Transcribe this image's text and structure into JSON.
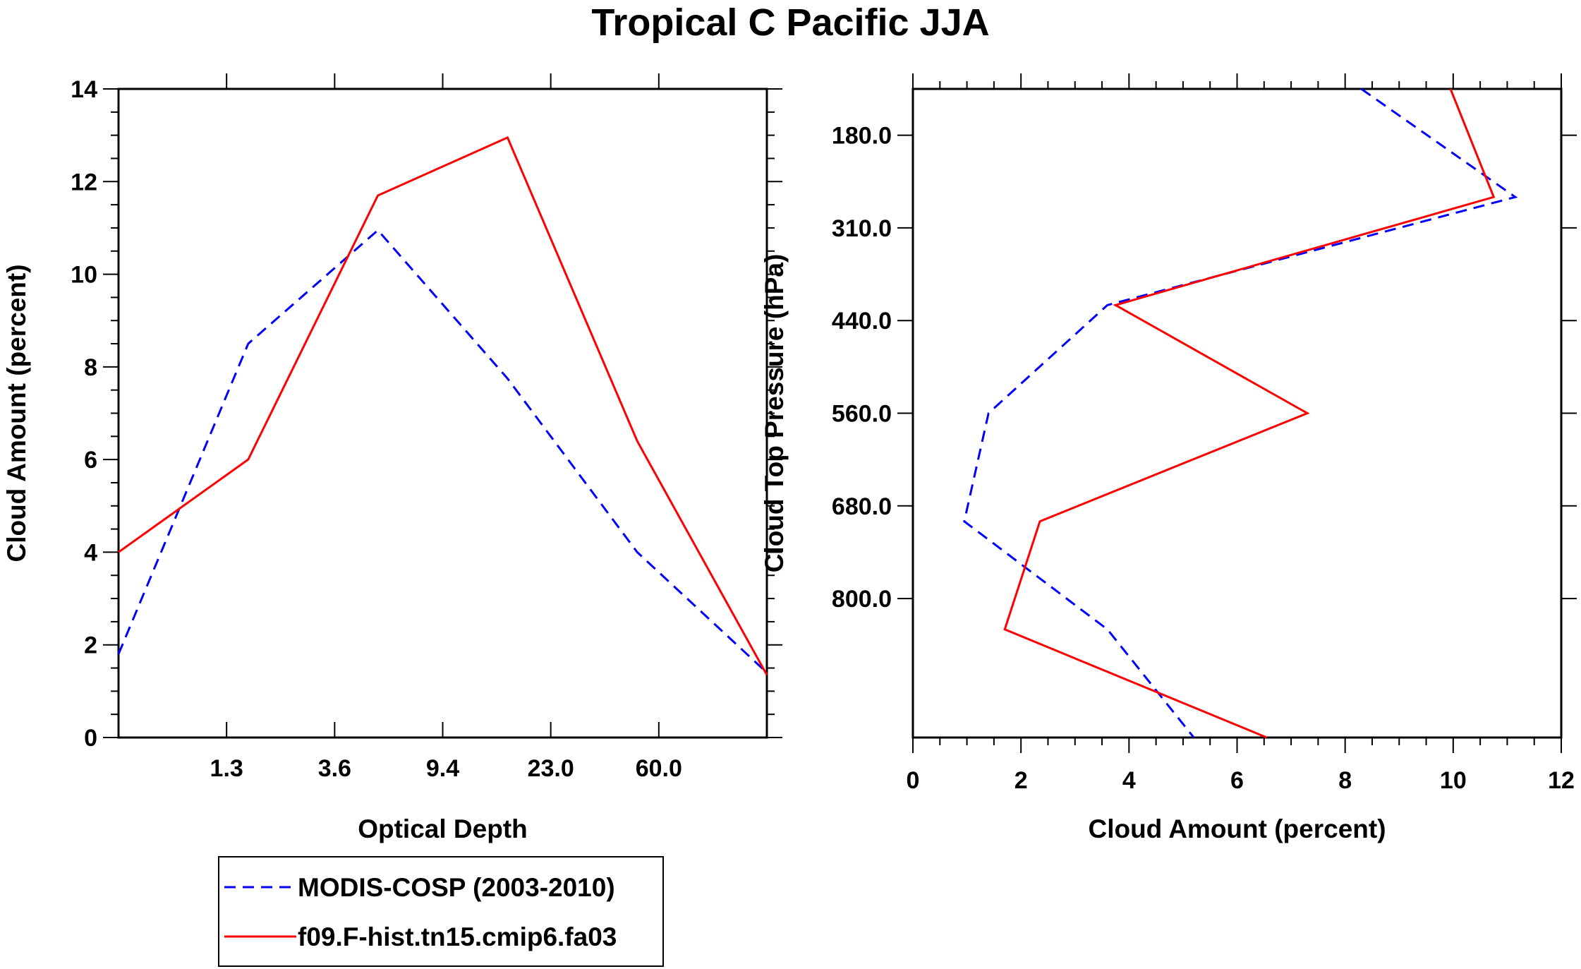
{
  "title": "Tropical C Pacific JJA",
  "colors": {
    "observed": "#0000ff",
    "model": "#ff0000",
    "axis": "#000000"
  },
  "chart_data": [
    {
      "type": "line",
      "xlabel": "Optical Depth",
      "ylabel": "Cloud Amount (percent)",
      "ylim": [
        0,
        14
      ],
      "y_ticks": [
        "0",
        "2",
        "4",
        "6",
        "8",
        "10",
        "12",
        "14"
      ],
      "x_tick_labels": [
        "1.3",
        "3.6",
        "9.4",
        "23.0",
        "60.0"
      ],
      "x_bins": 6,
      "series": [
        {
          "name": "MODIS-COSP (2003-2010)",
          "values": [
            1.8,
            8.5,
            10.95,
            7.75,
            4.0,
            1.4
          ]
        },
        {
          "name": "f09.F-hist.tn15.cmip6.fa03",
          "values": [
            4.0,
            6.0,
            11.7,
            12.95,
            6.4,
            1.35
          ]
        }
      ]
    },
    {
      "type": "line",
      "xlabel": "Cloud Amount (percent)",
      "ylabel": "Cloud Top Pressure (hPa)",
      "xlim": [
        0,
        12
      ],
      "x_ticks": [
        "0",
        "2",
        "4",
        "6",
        "8",
        "10",
        "12"
      ],
      "y_tick_labels": [
        "180.0",
        "310.0",
        "440.0",
        "560.0",
        "680.0",
        "800.0"
      ],
      "y_bins": 7,
      "series": [
        {
          "name": "MODIS-COSP (2003-2010)",
          "values": [
            8.3,
            11.15,
            3.6,
            1.4,
            0.95,
            3.6,
            5.2
          ]
        },
        {
          "name": "f09.F-hist.tn15.cmip6.fa03",
          "values": [
            9.95,
            10.75,
            3.75,
            7.3,
            2.35,
            1.7,
            6.55
          ]
        }
      ]
    }
  ],
  "legend": [
    {
      "label": "MODIS-COSP (2003-2010)",
      "style": "dashed"
    },
    {
      "label": "f09.F-hist.tn15.cmip6.fa03",
      "style": "solid"
    }
  ]
}
